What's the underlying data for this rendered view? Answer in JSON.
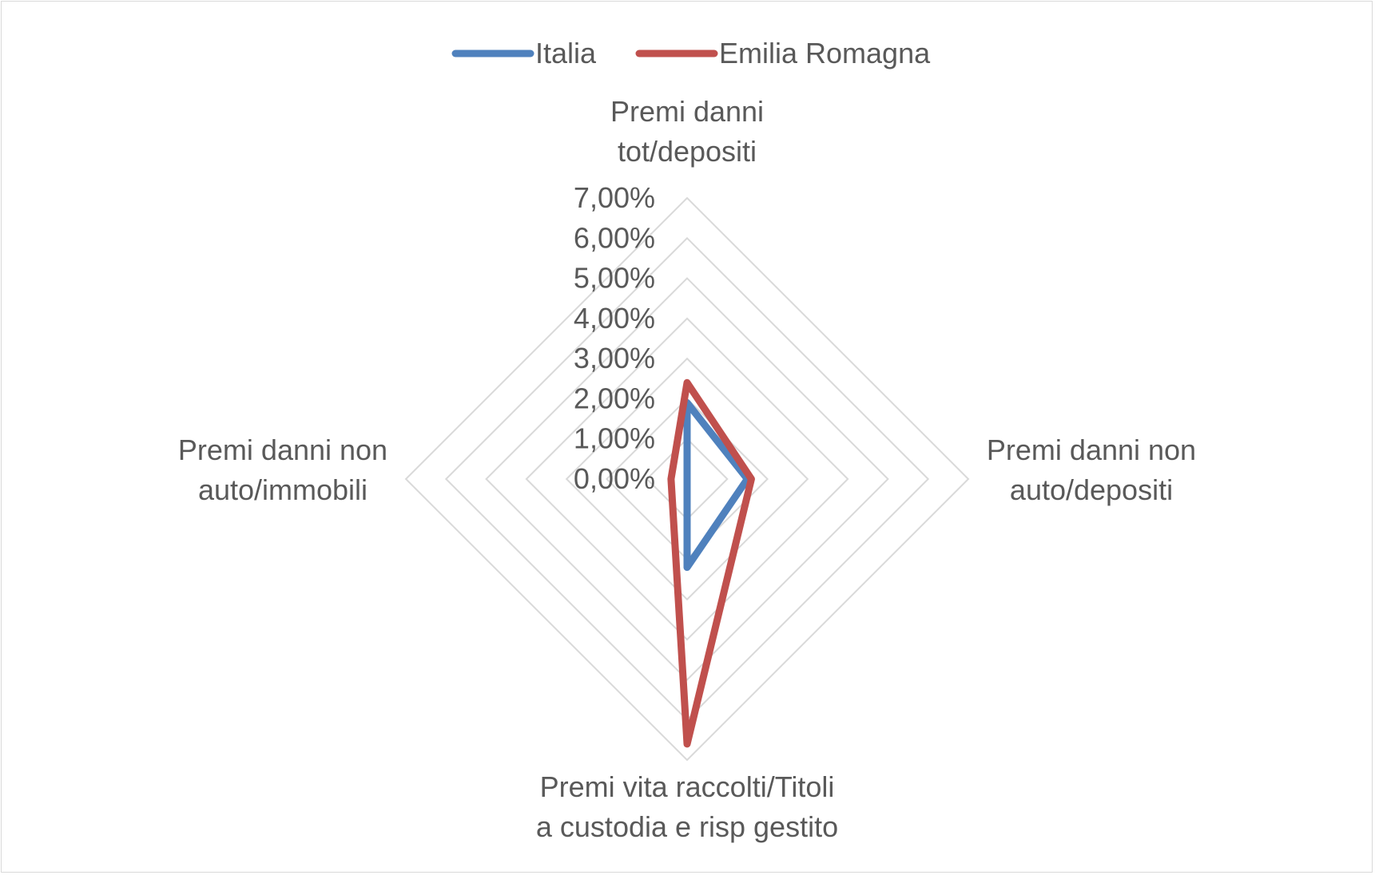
{
  "chart_data": {
    "type": "radar",
    "categories": [
      [
        "Premi danni",
        "tot/depositi"
      ],
      [
        "Premi danni non",
        "auto/depositi"
      ],
      [
        "Premi vita raccolti/Titoli",
        "a custodia e risp gestito"
      ],
      [
        "Premi danni non",
        "auto/immobili"
      ]
    ],
    "series": [
      {
        "name": "Italia",
        "color": "#4f81bd",
        "values": [
          1.9,
          1.5,
          2.2,
          0.0
        ]
      },
      {
        "name": "Emilia Romagna",
        "color": "#c0504d",
        "values": [
          2.4,
          1.6,
          6.6,
          0.4
        ]
      }
    ],
    "ticks": [
      "0,00%",
      "1,00%",
      "2,00%",
      "3,00%",
      "4,00%",
      "5,00%",
      "6,00%",
      "7,00%"
    ],
    "rlim": [
      0,
      7
    ],
    "grid": true,
    "legend_position": "top"
  }
}
